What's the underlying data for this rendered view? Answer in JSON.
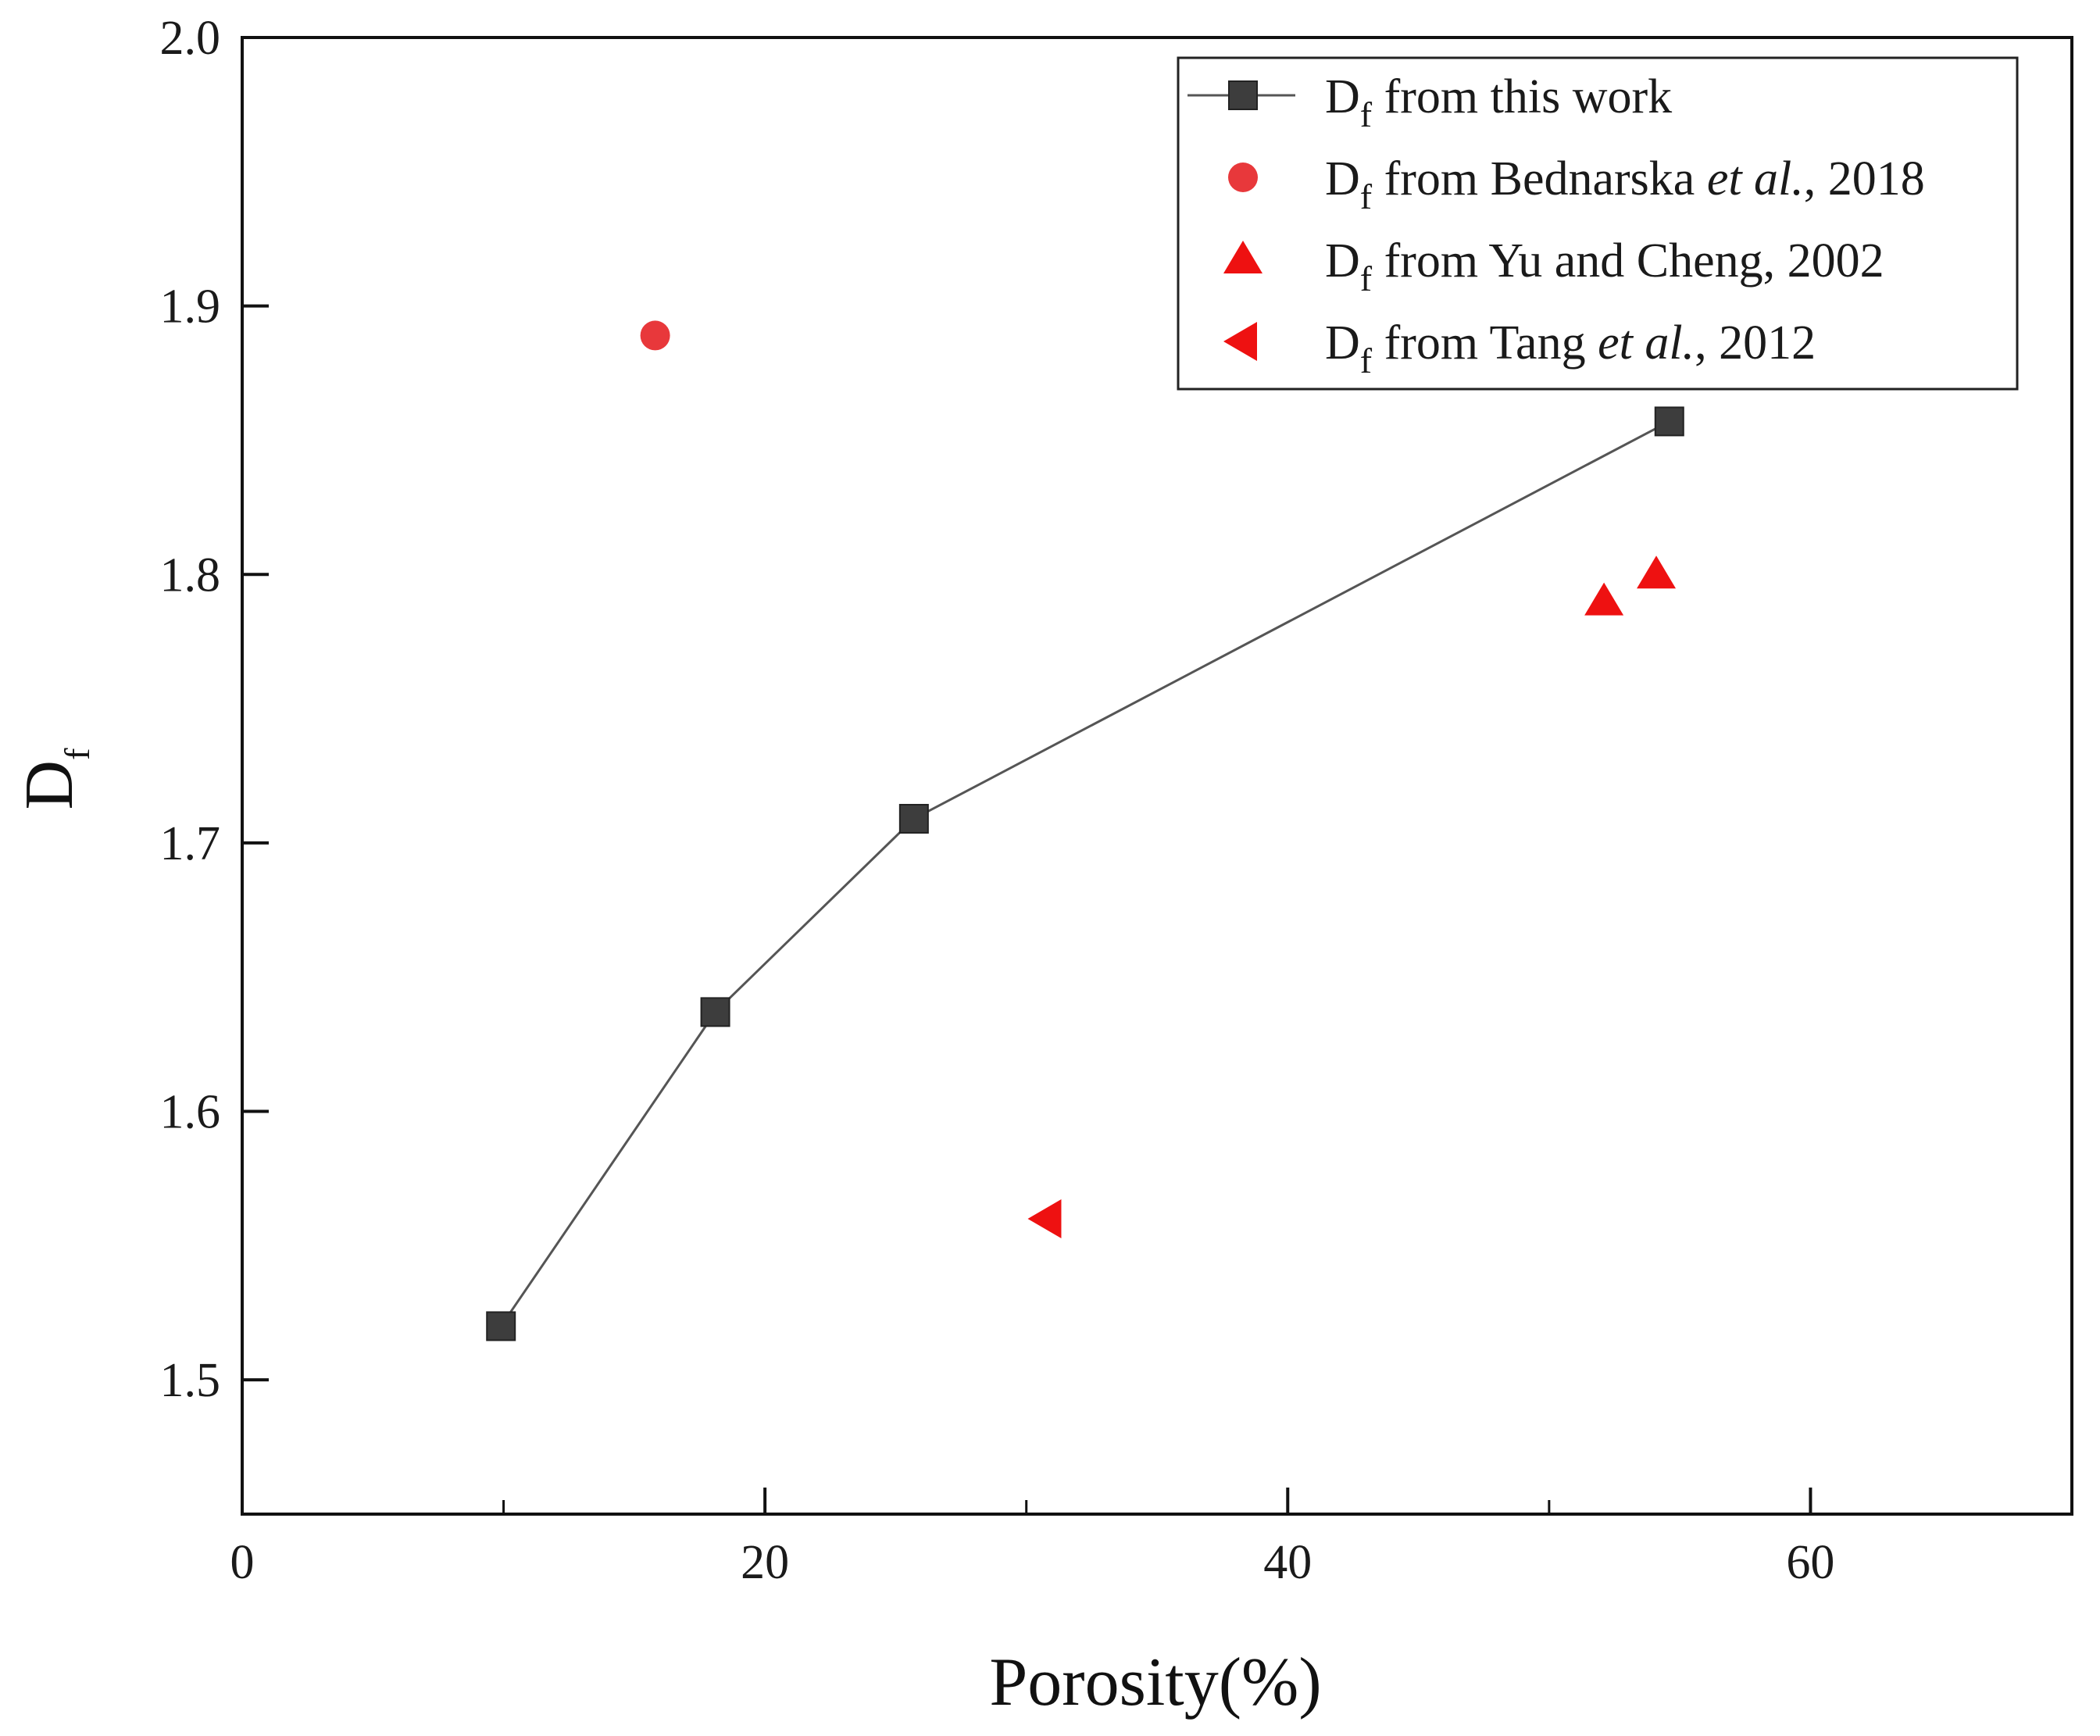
{
  "chart_data": {
    "type": "scatter",
    "title": "",
    "xlabel": "Porosity(%)",
    "ylabel": "D",
    "ylabel_subscript": "f",
    "xlim": [
      0,
      70
    ],
    "ylim": [
      1.45,
      2.0
    ],
    "x_ticks": [
      0,
      20,
      40,
      60
    ],
    "x_tick_labels": [
      "0",
      "20",
      "40",
      "60"
    ],
    "x_minor_ticks": [
      10,
      30,
      50
    ],
    "y_ticks": [
      1.5,
      1.6,
      1.7,
      1.8,
      1.9,
      2.0
    ],
    "y_tick_labels": [
      "1.5",
      "1.6",
      "1.7",
      "1.8",
      "1.9",
      "2.0"
    ],
    "grid": false,
    "legend_position": "top-right",
    "series": [
      {
        "name": "this work",
        "legend": {
          "main": "D",
          "sub": "f",
          "pre": " from this work",
          "italic": "",
          "post": ""
        },
        "marker": "square",
        "color": "#3d3d3d",
        "line": true,
        "x": [
          9.9,
          18.1,
          25.7,
          54.6
        ],
        "y": [
          1.52,
          1.637,
          1.709,
          1.857
        ]
      },
      {
        "name": "Bednarska et al., 2018",
        "legend": {
          "main": "D",
          "sub": "f",
          "pre": " from Bednarska ",
          "italic": "et al.",
          "post": ", 2018"
        },
        "marker": "circle",
        "color": "#e8383b",
        "line": false,
        "x": [
          15.8
        ],
        "y": [
          1.889
        ]
      },
      {
        "name": "Yu and Cheng, 2002",
        "legend": {
          "main": "D",
          "sub": "f",
          "pre": " from Yu and Cheng, 2002",
          "italic": "",
          "post": ""
        },
        "marker": "triangle-up",
        "color": "#ee1111",
        "line": false,
        "x": [
          52.1,
          54.1
        ],
        "y": [
          1.79,
          1.8
        ]
      },
      {
        "name": "Tang et al., 2012",
        "legend": {
          "main": "D",
          "sub": "f",
          "pre": " from Tang ",
          "italic": "et al.",
          "post": ", 2012"
        },
        "marker": "triangle-left",
        "color": "#ee1111",
        "line": false,
        "x": [
          30.8
        ],
        "y": [
          1.56
        ]
      }
    ]
  }
}
